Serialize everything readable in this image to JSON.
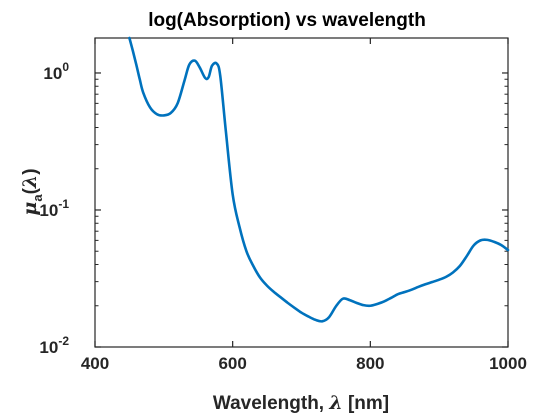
{
  "chart_data": {
    "type": "line",
    "title": "log(Absorption) vs wavelength",
    "xlabel": {
      "text": "Wavelength, ",
      "symbol": "λ",
      "unit": " [nm]"
    },
    "ylabel": {
      "symbol": "μ",
      "subscript": "a",
      "open": "(",
      "arg": "λ",
      "close": ")"
    },
    "xlim": [
      400,
      1000
    ],
    "ylim": [
      0.01,
      1.8
    ],
    "yscale": "log",
    "grid": false,
    "line_color": "#0072BD",
    "axis_color": "#262626",
    "x_ticks": [
      {
        "value": 400,
        "label": "400"
      },
      {
        "value": 600,
        "label": "600"
      },
      {
        "value": 800,
        "label": "800"
      },
      {
        "value": 1000,
        "label": "1000"
      }
    ],
    "y_ticks": [
      {
        "value": 0.01,
        "base": "10",
        "exp": "-2"
      },
      {
        "value": 0.1,
        "base": "10",
        "exp": "-1"
      },
      {
        "value": 1,
        "base": "10",
        "exp": "0"
      }
    ],
    "series": [
      {
        "x": [
          450,
          455,
          460,
          465,
          470,
          480,
          490,
          500,
          510,
          520,
          530,
          537,
          545,
          552,
          560,
          565,
          570,
          577,
          582,
          590,
          600,
          610,
          620,
          630,
          640,
          650,
          660,
          670,
          680,
          690,
          700,
          710,
          720,
          730,
          740,
          750,
          760,
          770,
          780,
          790,
          800,
          810,
          820,
          830,
          840,
          850,
          860,
          870,
          880,
          890,
          900,
          910,
          920,
          930,
          940,
          950,
          960,
          970,
          980,
          990,
          1000
        ],
        "y": [
          1.8,
          1.45,
          1.15,
          0.9,
          0.72,
          0.56,
          0.5,
          0.49,
          0.51,
          0.6,
          0.88,
          1.15,
          1.23,
          1.1,
          0.92,
          0.93,
          1.13,
          1.17,
          0.95,
          0.38,
          0.13,
          0.075,
          0.05,
          0.039,
          0.032,
          0.028,
          0.0252,
          0.023,
          0.021,
          0.0193,
          0.0178,
          0.0167,
          0.0158,
          0.0154,
          0.0165,
          0.0198,
          0.0225,
          0.022,
          0.021,
          0.0202,
          0.02,
          0.0206,
          0.0215,
          0.0228,
          0.0243,
          0.0252,
          0.0262,
          0.0275,
          0.0287,
          0.0298,
          0.031,
          0.0325,
          0.035,
          0.039,
          0.046,
          0.055,
          0.06,
          0.0605,
          0.0585,
          0.0555,
          0.051
        ]
      }
    ]
  }
}
